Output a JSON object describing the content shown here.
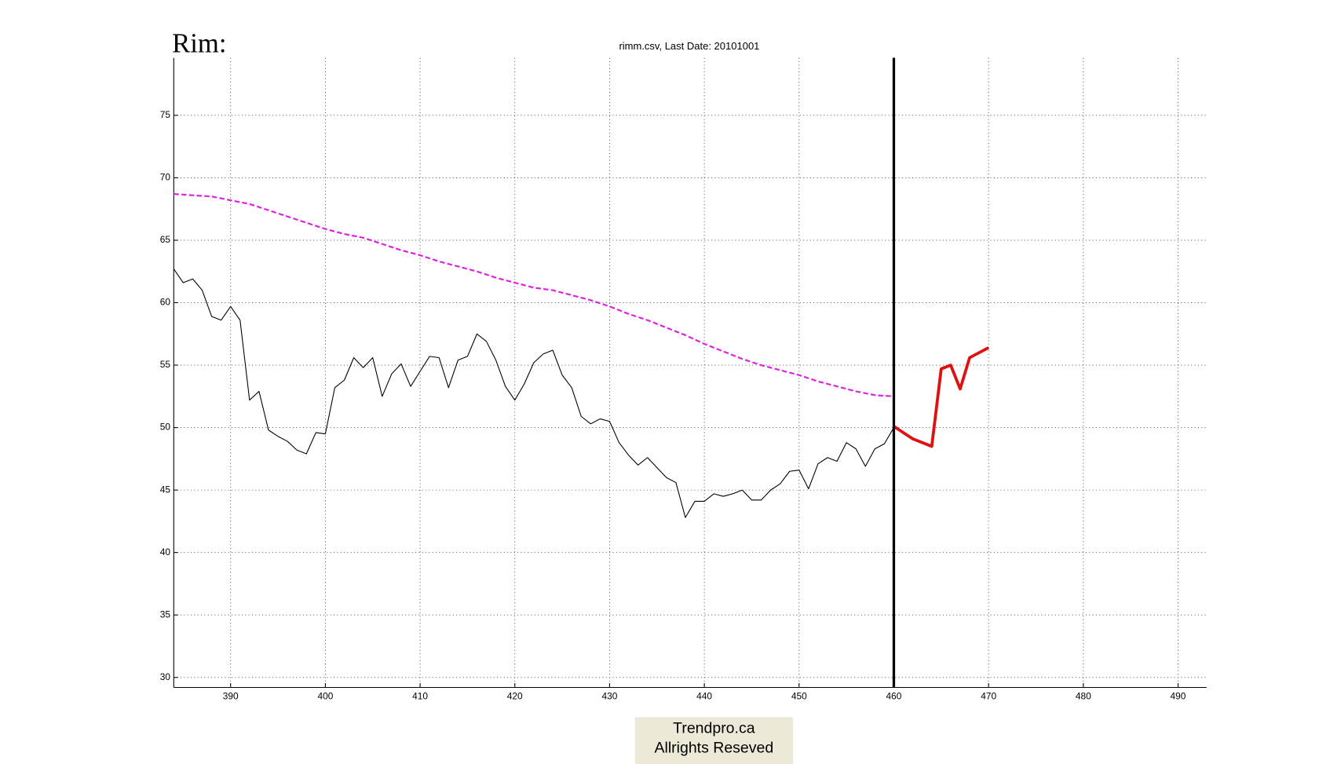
{
  "page_label": "Rim:",
  "footer": {
    "lines": [
      "Trendpro.ca",
      "Allrights Reseved"
    ]
  },
  "chart_data": {
    "type": "line",
    "title": "rimm.csv, Last Date: 20101001",
    "xlim": [
      384,
      493
    ],
    "ylim": [
      29.2,
      79.6
    ],
    "xticks": [
      390,
      400,
      410,
      420,
      430,
      440,
      450,
      460,
      470,
      480,
      490
    ],
    "yticks": [
      30,
      35,
      40,
      45,
      50,
      55,
      60,
      65,
      70,
      75
    ],
    "grid": true,
    "vline": 460,
    "vline_color": "#000000",
    "series": [
      {
        "color": "#000000",
        "dash": false,
        "width": 1,
        "x": [
          384,
          385,
          386,
          387,
          388,
          389,
          390,
          391,
          392,
          393,
          394,
          395,
          396,
          397,
          398,
          399,
          400,
          401,
          402,
          403,
          404,
          405,
          406,
          407,
          408,
          409,
          410,
          411,
          412,
          413,
          414,
          415,
          416,
          417,
          418,
          419,
          420,
          421,
          422,
          423,
          424,
          425,
          426,
          427,
          428,
          429,
          430,
          431,
          432,
          433,
          434,
          435,
          436,
          437,
          438,
          439,
          440,
          441,
          442,
          443,
          444,
          445,
          446,
          447,
          448,
          449,
          450,
          451,
          452,
          453,
          454,
          455,
          456,
          457,
          458,
          459,
          460
        ],
        "values": [
          62.7,
          61.6,
          61.9,
          61.0,
          58.9,
          58.6,
          59.7,
          58.6,
          52.2,
          52.9,
          49.8,
          49.3,
          48.9,
          48.2,
          47.9,
          49.6,
          49.5,
          53.2,
          53.8,
          55.6,
          54.8,
          55.6,
          52.5,
          54.3,
          55.1,
          53.3,
          54.5,
          55.7,
          55.6,
          53.2,
          55.4,
          55.7,
          57.5,
          56.9,
          55.4,
          53.3,
          52.2,
          53.5,
          55.2,
          55.9,
          56.2,
          54.2,
          53.2,
          50.9,
          50.3,
          50.7,
          50.5,
          48.8,
          47.8,
          47.0,
          47.6,
          46.8,
          46.0,
          45.6,
          42.8,
          44.1,
          44.1,
          44.7,
          44.5,
          44.7,
          45.0,
          44.2,
          44.2,
          45.0,
          45.5,
          46.5,
          46.6,
          45.1,
          47.1,
          47.6,
          47.3,
          48.8,
          48.3,
          46.9,
          48.3,
          48.7,
          50.0
        ]
      },
      {
        "color": "#e020e0",
        "dash": true,
        "width": 2,
        "x": [
          384,
          386,
          388,
          390,
          392,
          394,
          396,
          398,
          400,
          402,
          404,
          406,
          408,
          410,
          412,
          414,
          416,
          418,
          420,
          422,
          424,
          426,
          428,
          430,
          432,
          434,
          436,
          438,
          440,
          442,
          444,
          446,
          448,
          450,
          452,
          454,
          456,
          458,
          460
        ],
        "values": [
          68.7,
          68.6,
          68.5,
          68.2,
          67.9,
          67.4,
          66.9,
          66.4,
          65.9,
          65.5,
          65.2,
          64.7,
          64.2,
          63.8,
          63.3,
          62.9,
          62.5,
          62.0,
          61.6,
          61.2,
          61.0,
          60.6,
          60.2,
          59.7,
          59.1,
          58.6,
          58.0,
          57.4,
          56.7,
          56.1,
          55.5,
          55.0,
          54.6,
          54.2,
          53.7,
          53.3,
          52.9,
          52.6,
          52.5
        ]
      },
      {
        "color": "#e01010",
        "dash": false,
        "width": 3.5,
        "x": [
          460,
          462,
          464,
          465,
          466,
          467,
          468,
          470
        ],
        "values": [
          50.1,
          49.1,
          48.5,
          54.7,
          55.0,
          53.1,
          55.6,
          56.4
        ]
      }
    ]
  }
}
